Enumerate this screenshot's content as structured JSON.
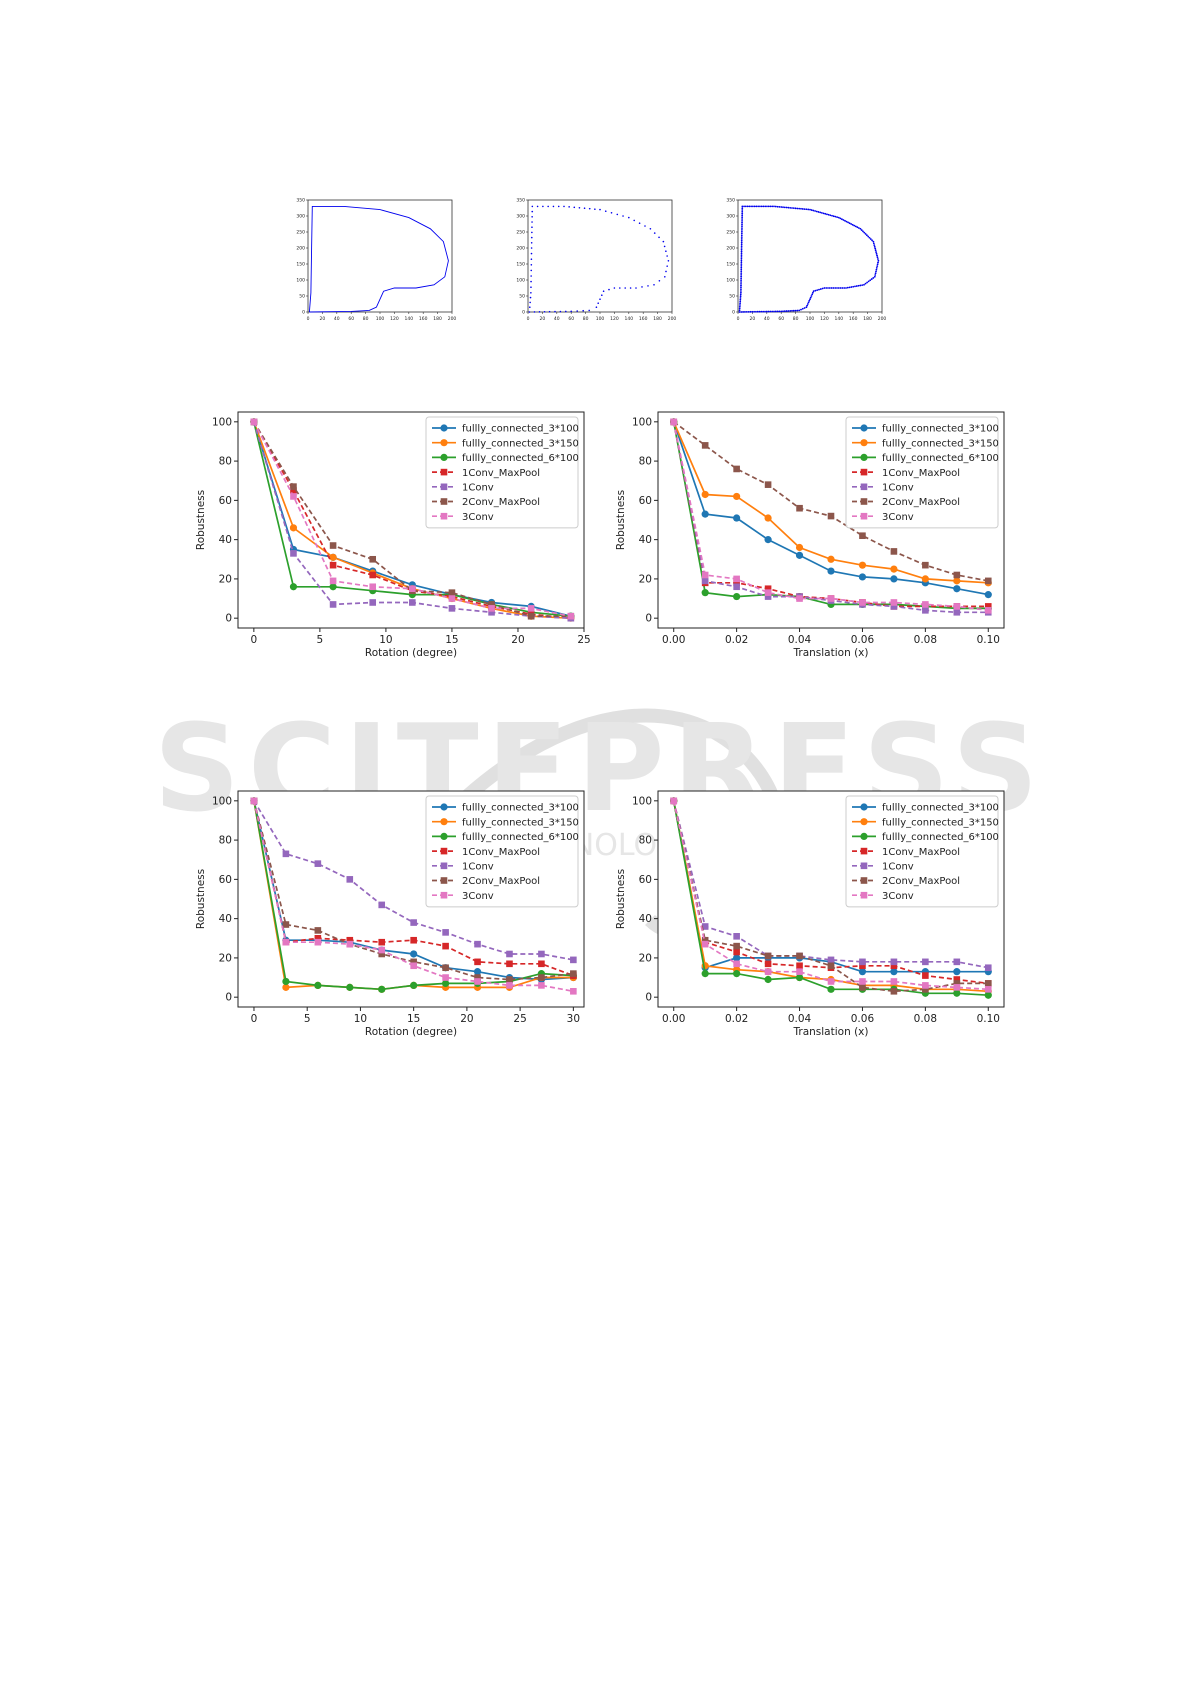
{
  "palette": {
    "fully_3x100": "#1f77b4",
    "fully_3x150": "#ff7f0e",
    "fully_6x100": "#2ca02c",
    "conv1_maxpool": "#d62728",
    "conv1": "#9467bd",
    "conv2_maxpool": "#8c564b",
    "conv3": "#e377c2",
    "shape": "#0000ee"
  },
  "watermark": {
    "line1": "SCITEPRESS",
    "line2": "SCIENCE AND TECHNOLOGY PUBLICATIONS"
  },
  "chart_data": [
    {
      "type": "line",
      "title": "",
      "xlabel": "",
      "ylabel": "",
      "xlim": [
        0,
        200
      ],
      "ylim": [
        0,
        350
      ],
      "xticks": [
        0,
        20,
        40,
        60,
        80,
        100,
        120,
        140,
        160,
        180,
        200
      ],
      "yticks": [
        0,
        50,
        100,
        150,
        200,
        250,
        300,
        350
      ],
      "style": "line",
      "series": [
        {
          "points": [
            [
              2,
              0
            ],
            [
              4,
              60
            ],
            [
              5,
              200
            ],
            [
              6,
              330
            ],
            [
              50,
              330
            ],
            [
              100,
              320
            ],
            [
              140,
              295
            ],
            [
              170,
              260
            ],
            [
              188,
              220
            ],
            [
              195,
              160
            ],
            [
              190,
              110
            ],
            [
              175,
              85
            ],
            [
              150,
              75
            ],
            [
              120,
              75
            ],
            [
              105,
              65
            ],
            [
              100,
              40
            ],
            [
              95,
              15
            ],
            [
              85,
              5
            ],
            [
              60,
              2
            ],
            [
              30,
              1
            ],
            [
              2,
              0
            ]
          ]
        }
      ]
    },
    {
      "type": "scatter",
      "title": "",
      "xlabel": "",
      "ylabel": "",
      "xlim": [
        0,
        200
      ],
      "ylim": [
        0,
        350
      ],
      "xticks": [
        0,
        20,
        40,
        60,
        80,
        100,
        120,
        140,
        160,
        180,
        200
      ],
      "yticks": [
        0,
        50,
        100,
        150,
        200,
        250,
        300,
        350
      ],
      "style": "dotted",
      "series": [
        {
          "points": [
            [
              2,
              0
            ],
            [
              4,
              60
            ],
            [
              5,
              200
            ],
            [
              6,
              330
            ],
            [
              50,
              330
            ],
            [
              100,
              320
            ],
            [
              140,
              295
            ],
            [
              170,
              260
            ],
            [
              188,
              220
            ],
            [
              195,
              160
            ],
            [
              190,
              110
            ],
            [
              175,
              85
            ],
            [
              150,
              75
            ],
            [
              120,
              75
            ],
            [
              105,
              65
            ],
            [
              100,
              40
            ],
            [
              95,
              15
            ],
            [
              85,
              5
            ],
            [
              60,
              2
            ],
            [
              30,
              1
            ],
            [
              2,
              0
            ]
          ]
        }
      ]
    },
    {
      "type": "scatter",
      "title": "",
      "xlabel": "",
      "ylabel": "",
      "xlim": [
        0,
        200
      ],
      "ylim": [
        0,
        350
      ],
      "xticks": [
        0,
        20,
        40,
        60,
        80,
        100,
        120,
        140,
        160,
        180,
        200
      ],
      "yticks": [
        0,
        50,
        100,
        150,
        200,
        250,
        300,
        350
      ],
      "style": "dense",
      "series": [
        {
          "points": [
            [
              2,
              0
            ],
            [
              4,
              60
            ],
            [
              5,
              200
            ],
            [
              6,
              330
            ],
            [
              50,
              330
            ],
            [
              100,
              320
            ],
            [
              140,
              295
            ],
            [
              170,
              260
            ],
            [
              188,
              220
            ],
            [
              195,
              160
            ],
            [
              190,
              110
            ],
            [
              175,
              85
            ],
            [
              150,
              75
            ],
            [
              120,
              75
            ],
            [
              105,
              65
            ],
            [
              100,
              40
            ],
            [
              95,
              15
            ],
            [
              85,
              5
            ],
            [
              60,
              2
            ],
            [
              30,
              1
            ],
            [
              2,
              0
            ]
          ]
        }
      ]
    },
    {
      "type": "line",
      "xlabel": "Rotation (degree)",
      "ylabel": "Robustness",
      "xlim": [
        -1.2,
        25
      ],
      "ylim": [
        -5,
        105
      ],
      "xticks": [
        0,
        5,
        10,
        15,
        20,
        25
      ],
      "xticklabels": [
        "0",
        "5",
        "10",
        "15",
        "20",
        "25"
      ],
      "yticks": [
        0,
        20,
        40,
        60,
        80,
        100
      ],
      "legend_position": "top-right",
      "x": [
        0,
        3,
        6,
        9,
        12,
        15,
        18,
        21,
        24
      ],
      "series": [
        {
          "name": "fullly_connected_3*100",
          "values": [
            100,
            35,
            31,
            24,
            17,
            12,
            8,
            6,
            1
          ]
        },
        {
          "name": "fullly_connected_3*150",
          "values": [
            100,
            46,
            31,
            23,
            15,
            10,
            5,
            1,
            0
          ]
        },
        {
          "name": "fullly_connected_6*100",
          "values": [
            100,
            16,
            16,
            14,
            12,
            12,
            7,
            3,
            1
          ]
        },
        {
          "name": "1Conv_MaxPool",
          "values": [
            100,
            65,
            27,
            22,
            14,
            11,
            6,
            2,
            0
          ]
        },
        {
          "name": "1Conv",
          "values": [
            100,
            33,
            7,
            8,
            8,
            5,
            3,
            1,
            0
          ]
        },
        {
          "name": "2Conv_MaxPool",
          "values": [
            100,
            67,
            37,
            30,
            14,
            13,
            7,
            1,
            1
          ]
        },
        {
          "name": "3Conv",
          "values": [
            100,
            62,
            19,
            16,
            15,
            10,
            5,
            5,
            1
          ]
        }
      ]
    },
    {
      "type": "line",
      "xlabel": "Translation (x)",
      "ylabel": "Robustness",
      "xlim": [
        -0.005,
        0.105
      ],
      "ylim": [
        -5,
        105
      ],
      "xticks": [
        0,
        0.02,
        0.04,
        0.06,
        0.08,
        0.1
      ],
      "xticklabels": [
        "0.00",
        "0.02",
        "0.04",
        "0.06",
        "0.08",
        "0.10"
      ],
      "yticks": [
        0,
        20,
        40,
        60,
        80,
        100
      ],
      "legend_position": "top-right",
      "x": [
        0,
        0.01,
        0.02,
        0.03,
        0.04,
        0.05,
        0.06,
        0.07,
        0.08,
        0.09,
        0.1
      ],
      "series": [
        {
          "name": "fullly_connected_3*100",
          "values": [
            100,
            53,
            51,
            40,
            32,
            24,
            21,
            20,
            18,
            15,
            12
          ]
        },
        {
          "name": "fullly_connected_3*150",
          "values": [
            100,
            63,
            62,
            51,
            36,
            30,
            27,
            25,
            20,
            19,
            18
          ]
        },
        {
          "name": "fullly_connected_6*100",
          "values": [
            100,
            13,
            11,
            12,
            11,
            7,
            7,
            7,
            6,
            5,
            5
          ]
        },
        {
          "name": "1Conv_MaxPool",
          "values": [
            100,
            18,
            18,
            15,
            11,
            10,
            8,
            6,
            6,
            6,
            6
          ]
        },
        {
          "name": "1Conv",
          "values": [
            100,
            19,
            16,
            11,
            11,
            9,
            7,
            6,
            4,
            3,
            3
          ]
        },
        {
          "name": "2Conv_MaxPool",
          "values": [
            100,
            88,
            76,
            68,
            56,
            52,
            42,
            34,
            27,
            22,
            19
          ]
        },
        {
          "name": "3Conv",
          "values": [
            100,
            22,
            20,
            13,
            10,
            10,
            8,
            8,
            7,
            6,
            4
          ]
        }
      ]
    },
    {
      "type": "line",
      "xlabel": "Rotation (degree)",
      "ylabel": "Robustness",
      "xlim": [
        -1.5,
        31
      ],
      "ylim": [
        -5,
        105
      ],
      "xticks": [
        0,
        5,
        10,
        15,
        20,
        25,
        30
      ],
      "xticklabels": [
        "0",
        "5",
        "10",
        "15",
        "20",
        "25",
        "30"
      ],
      "yticks": [
        0,
        20,
        40,
        60,
        80,
        100
      ],
      "legend_position": "top-right",
      "x": [
        0,
        3,
        6,
        9,
        12,
        15,
        18,
        21,
        24,
        27,
        30
      ],
      "series": [
        {
          "name": "fullly_connected_3*100",
          "values": [
            100,
            29,
            29,
            28,
            24,
            22,
            15,
            13,
            10,
            9,
            10
          ]
        },
        {
          "name": "fullly_connected_3*150",
          "values": [
            100,
            5,
            6,
            5,
            4,
            6,
            5,
            5,
            5,
            10,
            10
          ]
        },
        {
          "name": "fullly_connected_6*100",
          "values": [
            100,
            8,
            6,
            5,
            4,
            6,
            7,
            7,
            8,
            12,
            11
          ]
        },
        {
          "name": "1Conv_MaxPool",
          "values": [
            100,
            28,
            30,
            29,
            28,
            29,
            26,
            18,
            17,
            17,
            11
          ]
        },
        {
          "name": "1Conv",
          "values": [
            100,
            73,
            68,
            60,
            47,
            38,
            33,
            27,
            22,
            22,
            19
          ]
        },
        {
          "name": "2Conv_MaxPool",
          "values": [
            100,
            37,
            34,
            27,
            22,
            18,
            15,
            10,
            9,
            10,
            12
          ]
        },
        {
          "name": "3Conv",
          "values": [
            100,
            28,
            28,
            27,
            24,
            16,
            10,
            8,
            6,
            6,
            3
          ]
        }
      ]
    },
    {
      "type": "line",
      "xlabel": "Translation (x)",
      "ylabel": "Robustness",
      "xlim": [
        -0.005,
        0.105
      ],
      "ylim": [
        -5,
        105
      ],
      "xticks": [
        0,
        0.02,
        0.04,
        0.06,
        0.08,
        0.1
      ],
      "xticklabels": [
        "0.00",
        "0.02",
        "0.04",
        "0.06",
        "0.08",
        "0.10"
      ],
      "yticks": [
        0,
        20,
        40,
        60,
        80,
        100
      ],
      "legend_position": "top-right",
      "x": [
        0,
        0.01,
        0.02,
        0.03,
        0.04,
        0.05,
        0.06,
        0.07,
        0.08,
        0.09,
        0.1
      ],
      "series": [
        {
          "name": "fullly_connected_3*100",
          "values": [
            100,
            15,
            20,
            20,
            20,
            18,
            13,
            13,
            13,
            13,
            13
          ]
        },
        {
          "name": "fullly_connected_3*150",
          "values": [
            100,
            16,
            14,
            13,
            10,
            9,
            6,
            6,
            4,
            4,
            3
          ]
        },
        {
          "name": "fullly_connected_6*100",
          "values": [
            100,
            12,
            12,
            9,
            10,
            4,
            4,
            4,
            2,
            2,
            1
          ]
        },
        {
          "name": "1Conv_MaxPool",
          "values": [
            100,
            28,
            23,
            17,
            16,
            15,
            16,
            16,
            11,
            9,
            7
          ]
        },
        {
          "name": "1Conv",
          "values": [
            100,
            36,
            31,
            21,
            21,
            19,
            18,
            18,
            18,
            18,
            15
          ]
        },
        {
          "name": "2Conv_MaxPool",
          "values": [
            100,
            29,
            26,
            21,
            21,
            16,
            5,
            3,
            4,
            7,
            7
          ]
        },
        {
          "name": "3Conv",
          "values": [
            100,
            27,
            17,
            13,
            13,
            8,
            8,
            8,
            6,
            5,
            4
          ]
        }
      ]
    }
  ]
}
